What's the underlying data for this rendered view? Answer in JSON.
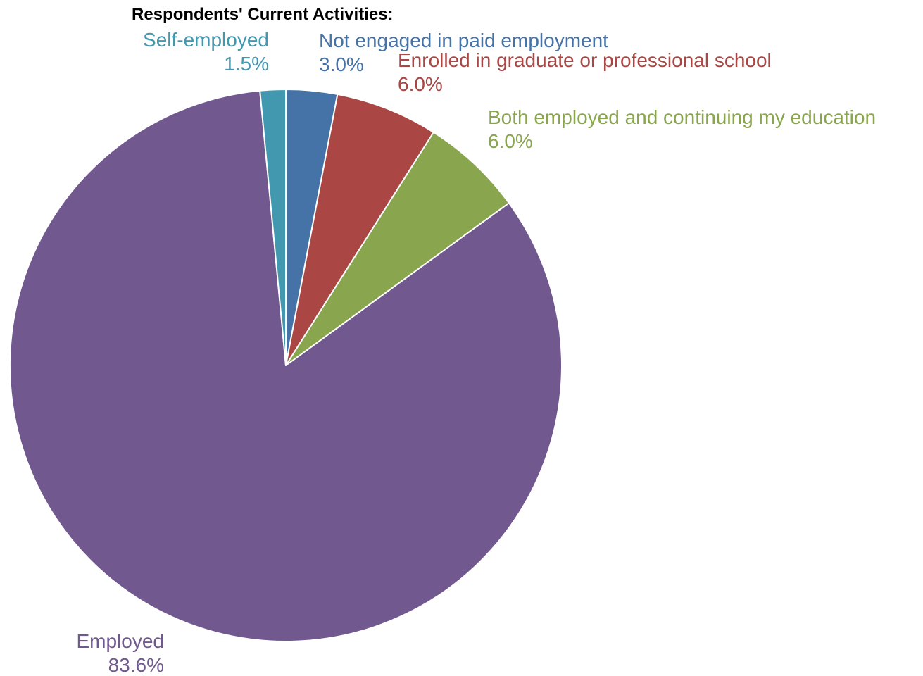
{
  "chart_data": {
    "type": "pie",
    "title": "Respondents' Current Activities:",
    "slices": [
      {
        "label": "Not engaged in paid employment",
        "value": 3.0,
        "value_label": "3.0%",
        "color": "#4572A7"
      },
      {
        "label": "Enrolled in graduate or professional school",
        "value": 6.0,
        "value_label": "6.0%",
        "color": "#AA4643"
      },
      {
        "label": "Both employed and continuing my education",
        "value": 6.0,
        "value_label": "6.0%",
        "color": "#89A54E"
      },
      {
        "label": "Employed",
        "value": 83.6,
        "value_label": "83.6%",
        "color": "#71588F"
      },
      {
        "label": "Self-employed",
        "value": 1.5,
        "value_label": "1.5%",
        "color": "#4198AF"
      }
    ]
  }
}
